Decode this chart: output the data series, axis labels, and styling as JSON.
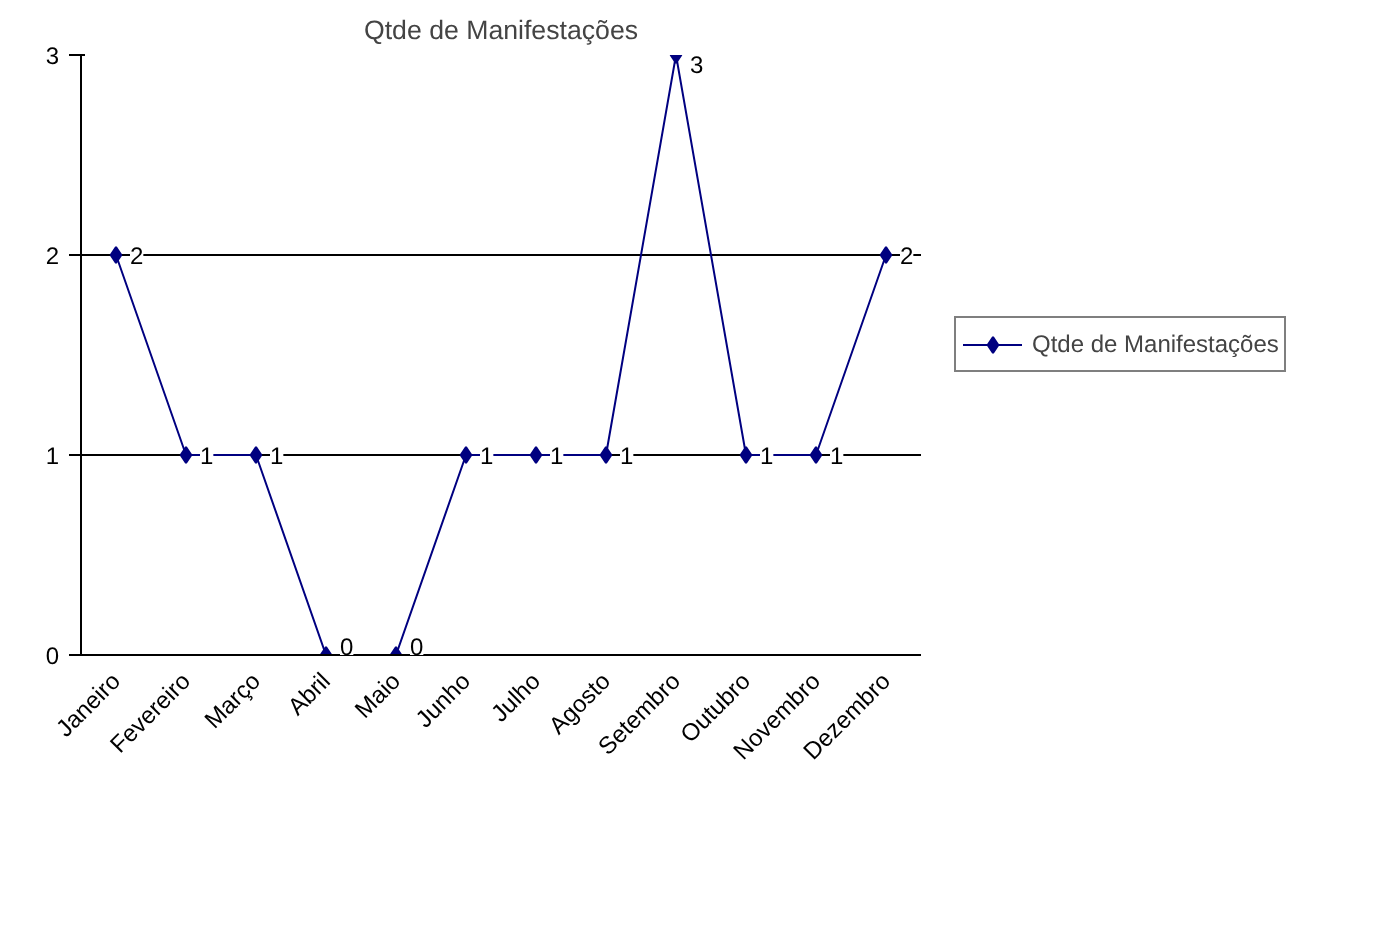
{
  "chart_data": {
    "type": "line",
    "title": "Qtde de Manifestações",
    "categories": [
      "Janeiro",
      "Fevereiro",
      "Março",
      "Abril",
      "Maio",
      "Junho",
      "Julho",
      "Agosto",
      "Setembro",
      "Outubro",
      "Novembro",
      "Dezembro"
    ],
    "series": [
      {
        "name": "Qtde de Manifestações",
        "color": "#000080",
        "values": [
          2,
          1,
          1,
          0,
          0,
          1,
          1,
          1,
          3,
          1,
          1,
          2
        ]
      }
    ],
    "ylim": [
      0,
      3
    ],
    "yticks": [
      0,
      1,
      2,
      3
    ],
    "grid": "y",
    "legend": "right",
    "marker": "diamond",
    "line_style": "solid",
    "data_labels": true
  }
}
